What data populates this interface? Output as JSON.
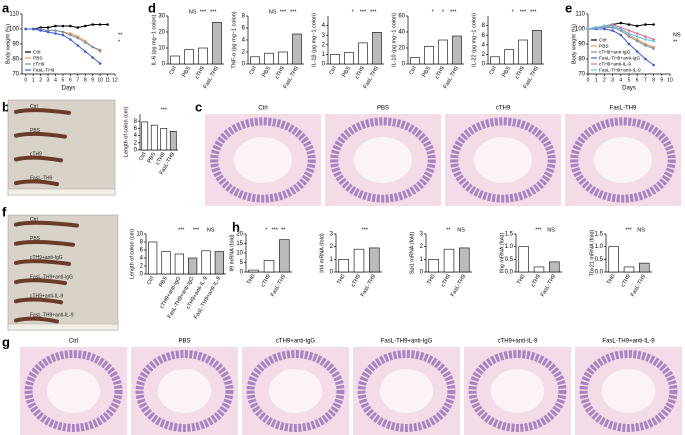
{
  "panels": [
    "a",
    "d",
    "e",
    "b",
    "c",
    "f",
    "h",
    "g"
  ],
  "images": {
    "b": {
      "labels": [
        "Ctrl",
        "PBS",
        "cTH9",
        "FasL-TH9"
      ]
    },
    "c": {
      "labels": [
        "Ctrl",
        "PBS",
        "cTH9",
        "FasL-TH9"
      ]
    },
    "f": {
      "labels": [
        "Ctrl",
        "PBS",
        "cTH9+anti-IgG",
        "FasL-TH9+anti-IgG",
        "cTH9+anti-IL-9",
        "FasL-TH9+anti-IL-9"
      ]
    },
    "g": {
      "labels": [
        "Ctrl",
        "PBS",
        "cTH9+anti-IgG",
        "FasL-TH9+anti-IgG",
        "cTH9+anti-IL-9",
        "FasL-TH9+anti-IL-9"
      ]
    }
  },
  "chart_data": [
    {
      "type": "line",
      "ylabel": "Body weight (%)",
      "xlabel": "Days",
      "x": [
        0,
        1,
        2,
        3,
        4,
        5,
        6,
        7,
        8,
        9,
        10,
        11
      ],
      "xlim": [
        -0.5,
        12
      ],
      "xticks": [
        0,
        1,
        2,
        3,
        4,
        5,
        6,
        7,
        8,
        9,
        10,
        11,
        12
      ],
      "ylim": [
        70,
        110
      ],
      "yticks": [
        70,
        80,
        90,
        100,
        110
      ],
      "legend": "lower left",
      "series": [
        {
          "name": "Ctrl",
          "color": "#000000",
          "values": [
            100,
            100,
            101,
            101,
            102,
            102,
            102,
            101,
            102,
            103,
            103,
            103
          ]
        },
        {
          "name": "PBS",
          "color": "#f0a04b",
          "values": [
            100,
            100,
            100,
            99,
            99,
            98,
            97,
            95,
            92,
            88,
            85,
            null
          ]
        },
        {
          "name": "cTH9",
          "color": "#7f8fa6",
          "values": [
            100,
            100,
            100,
            99,
            99,
            98,
            96,
            94,
            91,
            88,
            86,
            null
          ]
        },
        {
          "name": "FasL-TH9",
          "color": "#3b5bdb",
          "values": [
            100,
            100,
            99,
            98,
            97,
            96,
            93,
            89,
            85,
            81,
            77,
            null
          ]
        }
      ],
      "annotations": [
        "**",
        "*"
      ]
    },
    {
      "type": "bar",
      "ylabel": "IL-6 (pg mg−1 colon)",
      "categories": [
        "Ctrl",
        "PBS",
        "cTH9",
        "FasL-TH9"
      ],
      "values": [
        5,
        9,
        10,
        26
      ],
      "colors": [
        "#ffffff",
        "#ffffff",
        "#ffffff",
        "#bbbbbb"
      ],
      "ylim": [
        0,
        30
      ],
      "yticks": [
        0,
        10,
        20,
        30
      ],
      "annotations": [
        "NS",
        "***",
        "***"
      ]
    },
    {
      "type": "bar",
      "ylabel": "TNF-α (pg mg−1 colon)",
      "categories": [
        "Ctrl",
        "PBS",
        "cTH9",
        "FasL-TH9"
      ],
      "values": [
        1.2,
        1.8,
        2,
        5
      ],
      "colors": [
        "#ffffff",
        "#ffffff",
        "#ffffff",
        "#bbbbbb"
      ],
      "ylim": [
        0,
        8
      ],
      "yticks": [
        0,
        2,
        4,
        6,
        8
      ],
      "annotations": [
        "NS",
        "***",
        "***"
      ]
    },
    {
      "type": "bar",
      "ylabel": "IL-1β (pg mg−1 colon)",
      "categories": [
        "Ctrl",
        "PBS",
        "cTH9",
        "FasL-TH9"
      ],
      "values": [
        1,
        1.2,
        2.2,
        3.3
      ],
      "colors": [
        "#ffffff",
        "#ffffff",
        "#ffffff",
        "#bbbbbb"
      ],
      "ylim": [
        0,
        5
      ],
      "yticks": [
        0,
        1,
        2,
        3,
        4
      ],
      "annotations": [
        "*",
        "***",
        "***"
      ]
    },
    {
      "type": "bar",
      "ylabel": "IL-10 (pg mg−1 colon)",
      "categories": [
        "Ctrl",
        "PBS",
        "cTH9",
        "FasL-TH9"
      ],
      "values": [
        8,
        22,
        30,
        35
      ],
      "colors": [
        "#ffffff",
        "#ffffff",
        "#ffffff",
        "#bbbbbb"
      ],
      "ylim": [
        0,
        60
      ],
      "yticks": [
        0,
        20,
        40,
        60
      ],
      "annotations": [
        "*",
        "*",
        "***"
      ]
    },
    {
      "type": "bar",
      "ylabel": "IL-22 (pg mg−1 colon)",
      "categories": [
        "Ctrl",
        "PBS",
        "cTH9",
        "FasL-TH9"
      ],
      "values": [
        1.5,
        3,
        5,
        7
      ],
      "colors": [
        "#ffffff",
        "#ffffff",
        "#ffffff",
        "#bbbbbb"
      ],
      "ylim": [
        0,
        10
      ],
      "yticks": [
        0,
        2,
        4,
        6,
        8
      ],
      "annotations": [
        "*",
        "***",
        "***"
      ]
    },
    {
      "type": "line",
      "ylabel": "Body weight (%)",
      "xlabel": "Days",
      "x": [
        0,
        1,
        2,
        3,
        4,
        5,
        6,
        7,
        8
      ],
      "xlim": [
        0,
        10
      ],
      "xticks": [
        0,
        1,
        2,
        3,
        4,
        5,
        6,
        7,
        8,
        9,
        10
      ],
      "ylim": [
        70,
        110
      ],
      "yticks": [
        70,
        80,
        90,
        100,
        110
      ],
      "legend": "lower left",
      "series": [
        {
          "name": "Ctrl",
          "color": "#000000",
          "values": [
            100,
            101,
            102,
            103,
            104,
            103,
            102,
            103,
            103
          ]
        },
        {
          "name": "PBS",
          "color": "#f0a04b",
          "values": [
            100,
            101,
            101,
            102,
            100,
            96,
            93,
            90,
            88
          ]
        },
        {
          "name": "cTH9+anti-IgG",
          "color": "#7f8fa6",
          "values": [
            100,
            101,
            101,
            101,
            99,
            95,
            92,
            89,
            87
          ]
        },
        {
          "name": "FasL-TH9+anti-IgG",
          "color": "#3b5bdb",
          "values": [
            100,
            100,
            100,
            99,
            96,
            90,
            85,
            80,
            76
          ]
        },
        {
          "name": "cTH9+anti-IL-9",
          "color": "#e0708f",
          "values": [
            100,
            101,
            102,
            103,
            101,
            99,
            97,
            95,
            93
          ]
        },
        {
          "name": "FasL-TH9+anti-IL-9",
          "color": "#5cc8e8",
          "values": [
            100,
            101,
            102,
            102,
            100,
            97,
            95,
            93,
            92
          ]
        }
      ],
      "annotations": [
        "NS",
        "**"
      ]
    },
    {
      "type": "bar",
      "ylabel": "Length of colon (cm)",
      "categories": [
        "Ctrl",
        "PBS",
        "cTH9",
        "FasL-TH9"
      ],
      "values": [
        7.8,
        6.9,
        6,
        5.2
      ],
      "colors": [
        "#ffffff",
        "#ffffff",
        "#ffffff",
        "#bbbbbb"
      ],
      "ylim": [
        0,
        10
      ],
      "yticks": [
        0,
        2,
        4,
        6,
        8
      ],
      "annotations": [
        "***"
      ]
    },
    {
      "type": "bar",
      "ylabel": "Length of colon (cm)",
      "categories": [
        "Ctrl",
        "PBS",
        "cTH9+anti-IgG",
        "FasL-TH9+anti-IgG",
        "cTH9+anti-IL-9",
        "FasL-TH9+anti-IL-9"
      ],
      "values": [
        8,
        5.6,
        5,
        4,
        5.8,
        5.6
      ],
      "colors": [
        "#ffffff",
        "#ffffff",
        "#ffffff",
        "#bbbbbb",
        "#ffffff",
        "#bbbbbb"
      ],
      "ylim": [
        0,
        10
      ],
      "yticks": [
        0,
        2,
        4,
        6,
        8,
        10
      ],
      "annotations": [
        "***",
        "***",
        "NS"
      ]
    },
    {
      "type": "bar",
      "ylabel": "Il9 mRNA (fold)",
      "categories": [
        "TH0",
        "cTH9",
        "FasL-TH9"
      ],
      "values": [
        1,
        6,
        17
      ],
      "colors": [
        "#ffffff",
        "#ffffff",
        "#bbbbbb"
      ],
      "ylim": [
        0,
        20
      ],
      "yticks": [
        0,
        5,
        10,
        15,
        20
      ],
      "annotations": [
        "*",
        "***",
        "**"
      ]
    },
    {
      "type": "bar",
      "ylabel": "Irf4 mRNA (fold)",
      "categories": [
        "TH0",
        "cTH9",
        "FasL-TH9"
      ],
      "values": [
        1,
        1.8,
        1.9
      ],
      "colors": [
        "#ffffff",
        "#ffffff",
        "#bbbbbb"
      ],
      "ylim": [
        0,
        3
      ],
      "yticks": [
        0,
        1,
        2,
        3
      ],
      "annotations": [
        "***"
      ]
    },
    {
      "type": "bar",
      "ylabel": "Spi1 mRNA (fold)",
      "categories": [
        "TH0",
        "cTH9",
        "FasL-TH9"
      ],
      "values": [
        1,
        1.8,
        1.9
      ],
      "colors": [
        "#ffffff",
        "#ffffff",
        "#bbbbbb"
      ],
      "ylim": [
        0,
        3
      ],
      "yticks": [
        0,
        1,
        2,
        3
      ],
      "annotations": [
        "**",
        "NS"
      ]
    },
    {
      "type": "bar",
      "ylabel": "Ifng mRNA (fold)",
      "categories": [
        "TH0",
        "cTH9",
        "FasL-TH9"
      ],
      "values": [
        1,
        0.2,
        0.4
      ],
      "colors": [
        "#ffffff",
        "#ffffff",
        "#bbbbbb"
      ],
      "ylim": [
        0,
        1.5
      ],
      "yticks": [
        {
          "value": 0,
          "label": "0.0"
        },
        {
          "value": 0.5,
          "label": "0.5"
        },
        {
          "value": 1,
          "label": "1.0"
        },
        {
          "value": 1.5,
          "label": "1.5"
        }
      ],
      "annotations": [
        "***",
        "NS"
      ]
    },
    {
      "type": "bar",
      "ylabel": "Tbx21 mRNA (fold)",
      "categories": [
        "TH0",
        "cTH9",
        "FasL-TH9"
      ],
      "values": [
        1,
        0.2,
        0.35
      ],
      "colors": [
        "#ffffff",
        "#ffffff",
        "#bbbbbb"
      ],
      "ylim": [
        0,
        1.5
      ],
      "yticks": [
        {
          "value": 0,
          "label": "0.0"
        },
        {
          "value": 0.5,
          "label": "0.5"
        },
        {
          "value": 1,
          "label": "1.0"
        },
        {
          "value": 1.5,
          "label": "1.5"
        }
      ],
      "annotations": [
        "***",
        "NS"
      ]
    }
  ]
}
